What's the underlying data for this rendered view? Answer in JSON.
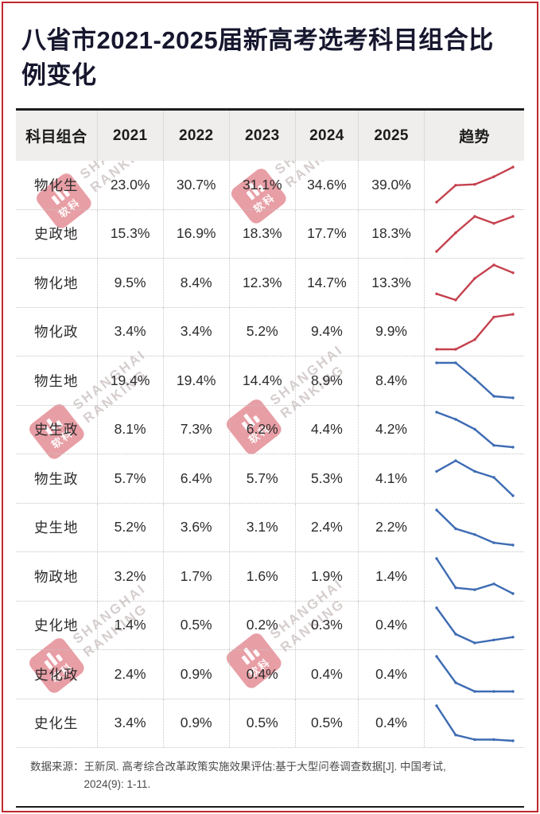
{
  "title": "八省市2021-2025届新高考选考科目组合比例变化",
  "table": {
    "columns": [
      "科目组合",
      "2021",
      "2022",
      "2023",
      "2024",
      "2025",
      "趋势"
    ],
    "rows": [
      {
        "label": "物化生",
        "values": [
          "23.0%",
          "30.7%",
          "31.1%",
          "34.6%",
          "39.0%"
        ],
        "trend": "up"
      },
      {
        "label": "史政地",
        "values": [
          "15.3%",
          "16.9%",
          "18.3%",
          "17.7%",
          "18.3%"
        ],
        "trend": "up"
      },
      {
        "label": "物化地",
        "values": [
          "9.5%",
          "8.4%",
          "12.3%",
          "14.7%",
          "13.3%"
        ],
        "trend": "up"
      },
      {
        "label": "物化政",
        "values": [
          "3.4%",
          "3.4%",
          "5.2%",
          "9.4%",
          "9.9%"
        ],
        "trend": "up"
      },
      {
        "label": "物生地",
        "values": [
          "19.4%",
          "19.4%",
          "14.4%",
          "8.9%",
          "8.4%"
        ],
        "trend": "down"
      },
      {
        "label": "史生政",
        "values": [
          "8.1%",
          "7.3%",
          "6.2%",
          "4.4%",
          "4.2%"
        ],
        "trend": "down"
      },
      {
        "label": "物生政",
        "values": [
          "5.7%",
          "6.4%",
          "5.7%",
          "5.3%",
          "4.1%"
        ],
        "trend": "down"
      },
      {
        "label": "史生地",
        "values": [
          "5.2%",
          "3.6%",
          "3.1%",
          "2.4%",
          "2.2%"
        ],
        "trend": "down"
      },
      {
        "label": "物政地",
        "values": [
          "3.2%",
          "1.7%",
          "1.6%",
          "1.9%",
          "1.4%"
        ],
        "trend": "down"
      },
      {
        "label": "史化地",
        "values": [
          "1.4%",
          "0.5%",
          "0.2%",
          "0.3%",
          "0.4%"
        ],
        "trend": "down"
      },
      {
        "label": "史化政",
        "values": [
          "2.4%",
          "0.9%",
          "0.4%",
          "0.4%",
          "0.4%"
        ],
        "trend": "down"
      },
      {
        "label": "史化生",
        "values": [
          "3.4%",
          "0.9%",
          "0.5%",
          "0.5%",
          "0.4%"
        ],
        "trend": "down"
      }
    ]
  },
  "chart_data": {
    "type": "table",
    "title": "八省市2021-2025届新高考选考科目组合比例变化",
    "categories": [
      "2021",
      "2022",
      "2023",
      "2024",
      "2025"
    ],
    "value_format": "percent",
    "series": [
      {
        "name": "物化生",
        "values": [
          23.0,
          30.7,
          31.1,
          34.6,
          39.0
        ],
        "trend": "up"
      },
      {
        "name": "史政地",
        "values": [
          15.3,
          16.9,
          18.3,
          17.7,
          18.3
        ],
        "trend": "up"
      },
      {
        "name": "物化地",
        "values": [
          9.5,
          8.4,
          12.3,
          14.7,
          13.3
        ],
        "trend": "up"
      },
      {
        "name": "物化政",
        "values": [
          3.4,
          3.4,
          5.2,
          9.4,
          9.9
        ],
        "trend": "up"
      },
      {
        "name": "物生地",
        "values": [
          19.4,
          19.4,
          14.4,
          8.9,
          8.4
        ],
        "trend": "down"
      },
      {
        "name": "史生政",
        "values": [
          8.1,
          7.3,
          6.2,
          4.4,
          4.2
        ],
        "trend": "down"
      },
      {
        "name": "物生政",
        "values": [
          5.7,
          6.4,
          5.7,
          5.3,
          4.1
        ],
        "trend": "down"
      },
      {
        "name": "史生地",
        "values": [
          5.2,
          3.6,
          3.1,
          2.4,
          2.2
        ],
        "trend": "down"
      },
      {
        "name": "物政地",
        "values": [
          3.2,
          1.7,
          1.6,
          1.9,
          1.4
        ],
        "trend": "down"
      },
      {
        "name": "史化地",
        "values": [
          1.4,
          0.5,
          0.2,
          0.3,
          0.4
        ],
        "trend": "down"
      },
      {
        "name": "史化政",
        "values": [
          2.4,
          0.9,
          0.4,
          0.4,
          0.4
        ],
        "trend": "down"
      },
      {
        "name": "史化生",
        "values": [
          3.4,
          0.9,
          0.5,
          0.5,
          0.4
        ],
        "trend": "down"
      }
    ],
    "sparkline_colors": {
      "up": "#c5414e",
      "down": "#3d6bb3"
    },
    "legend_position": "none",
    "grid": false
  },
  "source": {
    "label": "数据来源：",
    "line1": "王新凤. 高考综合改革政策实施效果评估:基于大型问卷调查数据[J]. 中国考试,",
    "line2": "2024(9): 1-11."
  },
  "watermark": {
    "logo_text": "软科",
    "line1": "SHANGHAI",
    "line2": "RANKING"
  },
  "colors": {
    "frame_border": "#c1272d",
    "header_background": "#efeeec",
    "trend_up": "#c5414e",
    "trend_down": "#3d6bb3",
    "title_text": "#16162e"
  }
}
